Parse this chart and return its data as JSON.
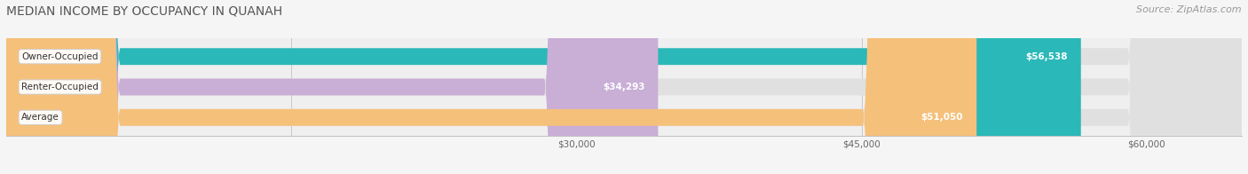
{
  "title": "MEDIAN INCOME BY OCCUPANCY IN QUANAH",
  "source": "Source: ZipAtlas.com",
  "categories": [
    "Owner-Occupied",
    "Renter-Occupied",
    "Average"
  ],
  "values": [
    56538,
    34293,
    51050
  ],
  "bar_colors": [
    "#2ab8b8",
    "#c9aed6",
    "#f5c07a"
  ],
  "value_labels": [
    "$56,538",
    "$34,293",
    "$51,050"
  ],
  "xmin": 0,
  "xmax": 65000,
  "xticks": [
    15000,
    30000,
    45000,
    60000
  ],
  "xtick_labels": [
    "",
    "$30,000",
    "$45,000",
    "$60,000"
  ],
  "fig_bg": "#f5f5f5",
  "ax_bg": "#efefef",
  "title_fontsize": 10,
  "source_fontsize": 8,
  "bar_height": 0.55,
  "figsize": [
    14.06,
    1.96
  ]
}
